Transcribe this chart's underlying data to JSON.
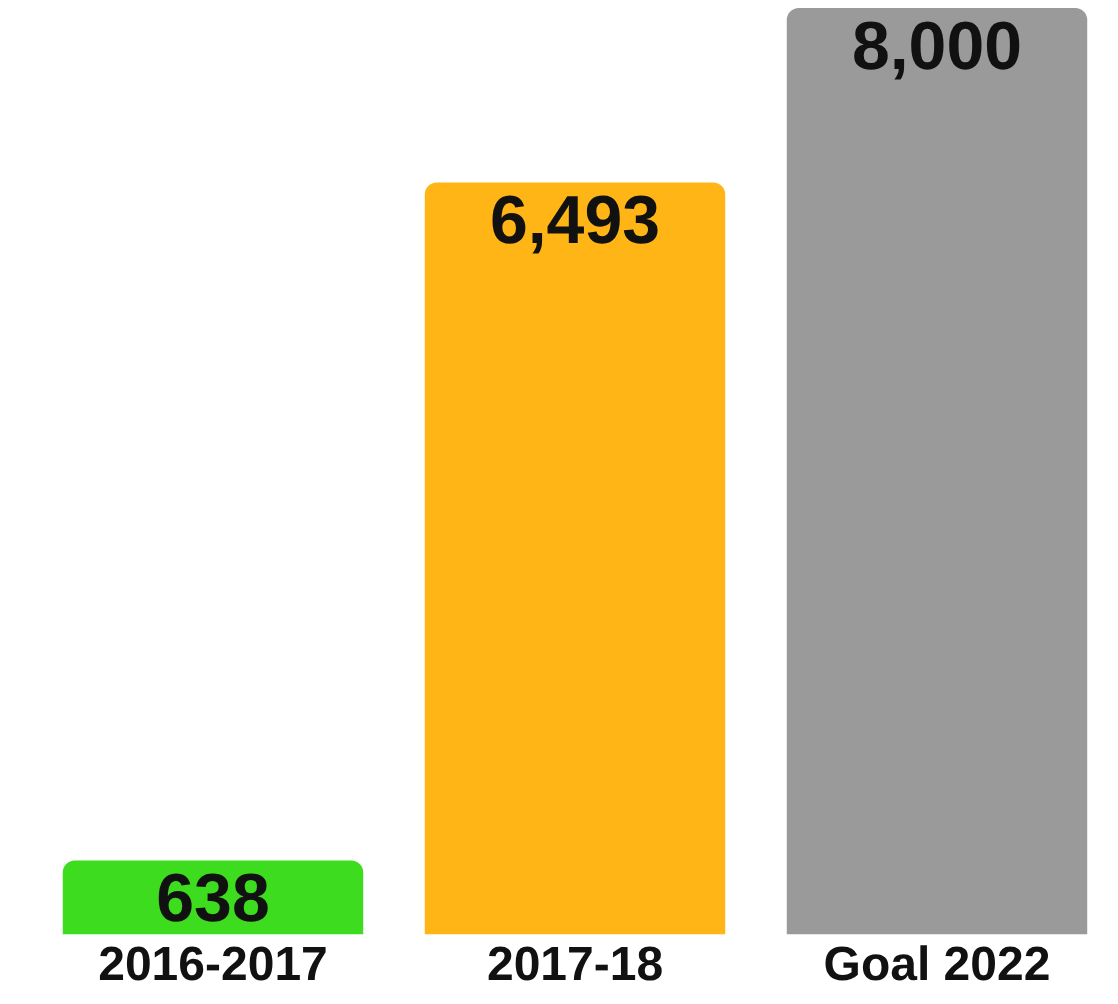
{
  "chart_data": {
    "type": "bar",
    "categories": [
      "2016-2017",
      "2017-18",
      "Goal 2022"
    ],
    "values": [
      638,
      6493,
      8000
    ],
    "colors": [
      "#3ddc1f",
      "#ffb515",
      "#9a9a9a"
    ],
    "value_labels": [
      "638",
      "6,493",
      "8,000"
    ],
    "grid": false,
    "legend": false
  }
}
